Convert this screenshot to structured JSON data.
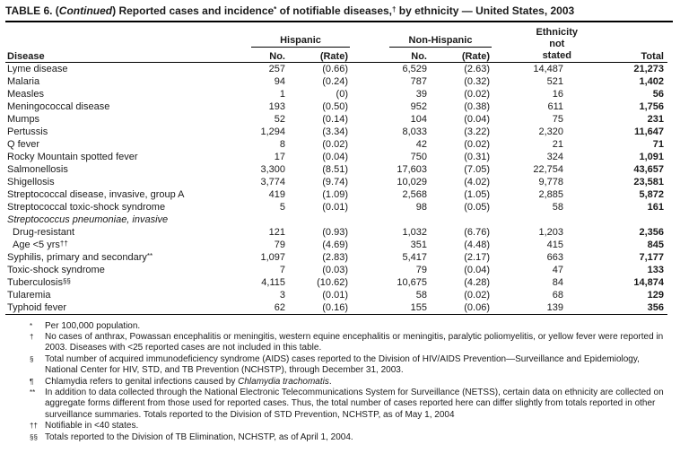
{
  "colors": {
    "background": "#ffffff",
    "text": "#1a1a1a",
    "rule": "#000000"
  },
  "table": {
    "title_segments": [
      {
        "text": "TABLE 6. ("
      },
      {
        "text": "Continued",
        "style": "italic"
      },
      {
        "text": ") Reported cases and incidence"
      },
      {
        "text": "*",
        "style": "sup"
      },
      {
        "text": " of notifiable diseases,"
      },
      {
        "text": "†",
        "style": "sup"
      },
      {
        "text": " by ethnicity — United States, 2003"
      }
    ],
    "headers": {
      "disease": "Disease",
      "hispanic": "Hispanic",
      "non_hispanic": "Non-Hispanic",
      "no": "No.",
      "rate": "(Rate)",
      "eth_stack": [
        "Ethnicity",
        "not",
        "stated"
      ],
      "total": "Total"
    },
    "rows": [
      {
        "disease": "Lyme disease",
        "hispanic_no": "257",
        "hispanic_rate": "(0.66)",
        "nonhispanic_no": "6,529",
        "nonhispanic_rate": "(2.63)",
        "not_stated": "14,487",
        "total": "21,273"
      },
      {
        "disease": "Malaria",
        "hispanic_no": "94",
        "hispanic_rate": "(0.24)",
        "nonhispanic_no": "787",
        "nonhispanic_rate": "(0.32)",
        "not_stated": "521",
        "total": "1,402"
      },
      {
        "disease": "Measles",
        "hispanic_no": "1",
        "hispanic_rate": "(0)",
        "nonhispanic_no": "39",
        "nonhispanic_rate": "(0.02)",
        "not_stated": "16",
        "total": "56"
      },
      {
        "disease": "Meningococcal disease",
        "hispanic_no": "193",
        "hispanic_rate": "(0.50)",
        "nonhispanic_no": "952",
        "nonhispanic_rate": "(0.38)",
        "not_stated": "611",
        "total": "1,756"
      },
      {
        "disease": "Mumps",
        "hispanic_no": "52",
        "hispanic_rate": "(0.14)",
        "nonhispanic_no": "104",
        "nonhispanic_rate": "(0.04)",
        "not_stated": "75",
        "total": "231"
      },
      {
        "disease": "Pertussis",
        "hispanic_no": "1,294",
        "hispanic_rate": "(3.34)",
        "nonhispanic_no": "8,033",
        "nonhispanic_rate": "(3.22)",
        "not_stated": "2,320",
        "total": "11,647"
      },
      {
        "disease": "Q fever",
        "hispanic_no": "8",
        "hispanic_rate": "(0.02)",
        "nonhispanic_no": "42",
        "nonhispanic_rate": "(0.02)",
        "not_stated": "21",
        "total": "71"
      },
      {
        "disease": "Rocky Mountain spotted fever",
        "hispanic_no": "17",
        "hispanic_rate": "(0.04)",
        "nonhispanic_no": "750",
        "nonhispanic_rate": "(0.31)",
        "not_stated": "324",
        "total": "1,091"
      },
      {
        "disease": "Salmonellosis",
        "hispanic_no": "3,300",
        "hispanic_rate": "(8.51)",
        "nonhispanic_no": "17,603",
        "nonhispanic_rate": "(7.05)",
        "not_stated": "22,754",
        "total": "43,657"
      },
      {
        "disease": "Shigellosis",
        "hispanic_no": "3,774",
        "hispanic_rate": "(9.74)",
        "nonhispanic_no": "10,029",
        "nonhispanic_rate": "(4.02)",
        "not_stated": "9,778",
        "total": "23,581"
      },
      {
        "disease": "Streptococcal disease, invasive, group A",
        "hispanic_no": "419",
        "hispanic_rate": "(1.09)",
        "nonhispanic_no": "2,568",
        "nonhispanic_rate": "(1.05)",
        "not_stated": "2,885",
        "total": "5,872"
      },
      {
        "disease": "Streptococcal toxic-shock syndrome",
        "hispanic_no": "5",
        "hispanic_rate": "(0.01)",
        "nonhispanic_no": "98",
        "nonhispanic_rate": "(0.05)",
        "not_stated": "58",
        "total": "161"
      },
      {
        "disease": "Streptococcus pneumoniae, invasive",
        "italic": true,
        "hispanic_no": "",
        "hispanic_rate": "",
        "nonhispanic_no": "",
        "nonhispanic_rate": "",
        "not_stated": "",
        "total": ""
      },
      {
        "disease": "Drug-resistant",
        "indent": true,
        "hispanic_no": "121",
        "hispanic_rate": "(0.93)",
        "nonhispanic_no": "1,032",
        "nonhispanic_rate": "(6.76)",
        "not_stated": "1,203",
        "total": "2,356"
      },
      {
        "disease": "Age <5 yrs",
        "sup": "††",
        "indent": true,
        "hispanic_no": "79",
        "hispanic_rate": "(4.69)",
        "nonhispanic_no": "351",
        "nonhispanic_rate": "(4.48)",
        "not_stated": "415",
        "total": "845"
      },
      {
        "disease": "Syphilis, primary and secondary",
        "sup": "**",
        "hispanic_no": "1,097",
        "hispanic_rate": "(2.83)",
        "nonhispanic_no": "5,417",
        "nonhispanic_rate": "(2.17)",
        "not_stated": "663",
        "total": "7,177"
      },
      {
        "disease": "Toxic-shock syndrome",
        "hispanic_no": "7",
        "hispanic_rate": "(0.03)",
        "nonhispanic_no": "79",
        "nonhispanic_rate": "(0.04)",
        "not_stated": "47",
        "total": "133"
      },
      {
        "disease": "Tuberculosis",
        "sup": "§§",
        "hispanic_no": "4,115",
        "hispanic_rate": "(10.62)",
        "nonhispanic_no": "10,675",
        "nonhispanic_rate": "(4.28)",
        "not_stated": "84",
        "total": "14,874"
      },
      {
        "disease": "Tularemia",
        "hispanic_no": "3",
        "hispanic_rate": "(0.01)",
        "nonhispanic_no": "58",
        "nonhispanic_rate": "(0.02)",
        "not_stated": "68",
        "total": "129"
      },
      {
        "disease": "Typhoid fever",
        "hispanic_no": "62",
        "hispanic_rate": "(0.16)",
        "nonhispanic_no": "155",
        "nonhispanic_rate": "(0.06)",
        "not_stated": "139",
        "total": "356"
      }
    ]
  },
  "footnotes": [
    {
      "marker": "*",
      "segments": [
        {
          "text": "Per 100,000 population."
        }
      ]
    },
    {
      "marker": "†",
      "segments": [
        {
          "text": "No cases of anthrax, Powassan encephalitis or meningitis, western equine encephalitis or meningitis, paralytic poliomyelitis, or yellow fever were reported in 2003. Diseases with <25 reported cases are not included in this table."
        }
      ]
    },
    {
      "marker": "§",
      "segments": [
        {
          "text": "Total number of acquired immunodeficiency syndrome (AIDS) cases reported to the Division of HIV/AIDS Prevention—Surveillance and Epidemiology, National Center for HIV, STD, and TB Prevention (NCHSTP), through December 31, 2003."
        }
      ]
    },
    {
      "marker": "¶",
      "segments": [
        {
          "text": "Chlamydia refers to genital infections caused by "
        },
        {
          "text": "Chlamydia trachomatis",
          "style": "italic"
        },
        {
          "text": "."
        }
      ]
    },
    {
      "marker": "**",
      "segments": [
        {
          "text": "In addition to data collected through the National Electronic Telecommunications System for Surveillance (NETSS), certain data on ethnicity are collected on aggregate forms different from those used for reported cases. Thus, the total number of cases reported here can differ slightly from totals reported in other surveillance summaries. Totals reported to the Division of STD Prevention, NCHSTP, as of May 1, 2004"
        }
      ]
    },
    {
      "marker": "††",
      "segments": [
        {
          "text": "Notifiable in <40 states."
        }
      ]
    },
    {
      "marker": "§§",
      "segments": [
        {
          "text": "Totals reported to the Division of TB Elimination, NCHSTP, as of April 1, 2004."
        }
      ]
    }
  ]
}
